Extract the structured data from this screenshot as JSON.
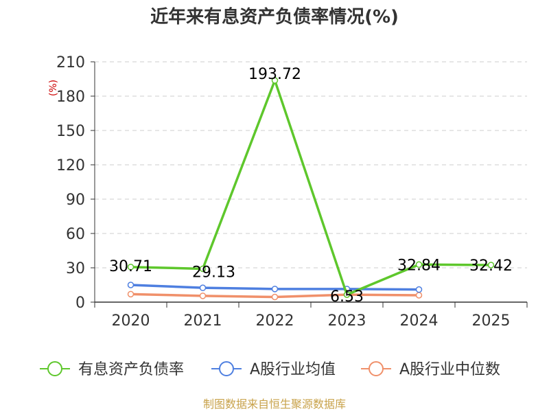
{
  "title": "近年来有息资产负债率情况(%)",
  "source": "制图数据来自恒生聚源数据库",
  "chart_data": {
    "type": "line",
    "title": "近年来有息资产负债率情况(%)",
    "ylabel": "(%)",
    "xlabel": "",
    "categories": [
      "2020",
      "2021",
      "2022",
      "2023",
      "2024",
      "2025"
    ],
    "ylim": [
      0,
      210
    ],
    "yticks": [
      0,
      30,
      60,
      90,
      120,
      150,
      180,
      210
    ],
    "grid": true,
    "legend_position": "bottom",
    "series": [
      {
        "name": "有息资产负债率",
        "color": "#5ec72c",
        "values": [
          30.71,
          29.13,
          193.72,
          6.53,
          32.84,
          32.42
        ],
        "labels": [
          "30.71",
          "29.13",
          "193.72",
          "6.53",
          "32.84",
          "32.42"
        ]
      },
      {
        "name": "A股行业均值",
        "color": "#4e7fe0",
        "values": [
          15.0,
          12.5,
          11.5,
          11.5,
          11.0,
          null
        ]
      },
      {
        "name": "A股行业中位数",
        "color": "#f0906a",
        "values": [
          7.0,
          5.5,
          4.5,
          6.5,
          6.0,
          null
        ]
      }
    ]
  }
}
